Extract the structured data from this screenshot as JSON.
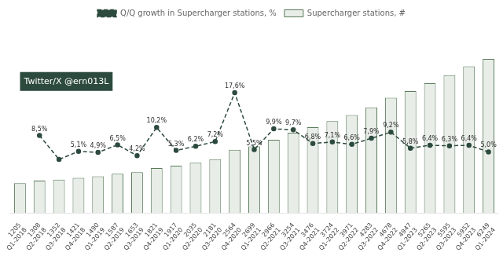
{
  "chart_data": {
    "type": "bar",
    "categories": [
      "Q1-2018",
      "Q2-2018",
      "Q3-2018",
      "Q4-2018",
      "Q1-2019",
      "Q2-2019",
      "Q3-2019",
      "Q4-2019",
      "Q1-2020",
      "Q2-2020",
      "Q3-2020",
      "Q4-2020",
      "Q1-2021",
      "Q2-2021",
      "Q3-2021",
      "Q4-2021",
      "Q1-2022",
      "Q2-2022",
      "Q3-2022",
      "Q4-2022",
      "Q1-2023",
      "Q2-2023",
      "Q3-2023",
      "Q4-2023",
      "Q1-2024"
    ],
    "series": [
      {
        "name": "Supercharger stations, #",
        "type": "bar",
        "color": "#e8ede8",
        "data_labels": true,
        "values": [
          1205,
          1308,
          1352,
          1421,
          1490,
          1587,
          1653,
          1821,
          1917,
          2035,
          2181,
          2564,
          2699,
          2966,
          3254,
          3476,
          3724,
          3971,
          4283,
          4678,
          4947,
          5265,
          5595,
          5952,
          6249
        ]
      },
      {
        "name": "Q/Q growth in Supercharger stations, %",
        "type": "line",
        "axis": "y2",
        "color": "#2d4a3e",
        "line_style": "dashed",
        "marker": "circle",
        "data_labels": true,
        "values": [
          null,
          8.5,
          3.4,
          5.1,
          4.9,
          6.5,
          4.2,
          10.2,
          5.3,
          6.2,
          7.2,
          17.6,
          5.5,
          9.9,
          9.7,
          6.8,
          7.1,
          6.6,
          7.9,
          9.2,
          5.8,
          6.4,
          6.3,
          6.4,
          5.0
        ],
        "value_labels": [
          null,
          "8,5%",
          null,
          "5,1%",
          "4,9%",
          "6,5%",
          "4,2%",
          "10,2%",
          "5,3%",
          "6,2%",
          "7,2%",
          "17,6%",
          "5,5%",
          "9,9%",
          "9,7%",
          "6,8%",
          "7,1%",
          "6,6%",
          "7,9%",
          "9,2%",
          "5,8%",
          "6,4%",
          "6,3%",
          "6,4%",
          "5,0%"
        ]
      }
    ],
    "ylim": [
      0,
      7623.78
    ],
    "y2lim": [
      -8,
      32
    ],
    "grid": false,
    "legend": "top",
    "tick_labels": "x",
    "annotation": "Twitter/X @ern013L"
  }
}
